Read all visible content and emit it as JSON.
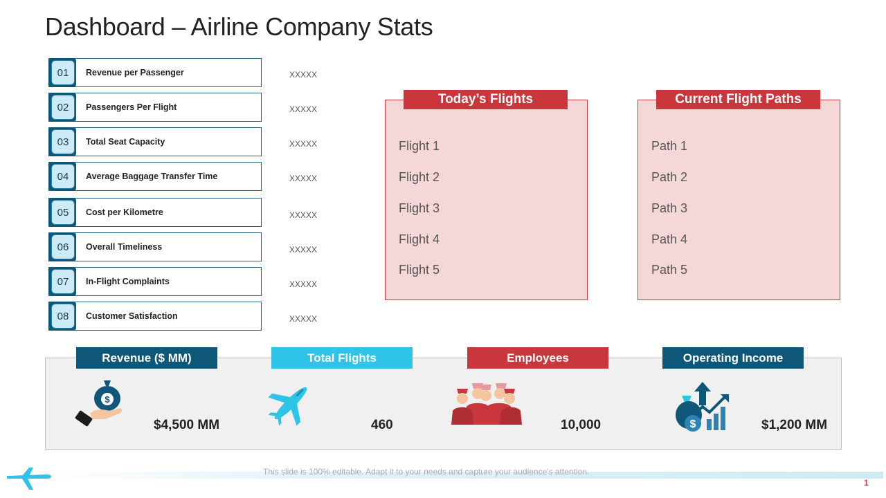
{
  "page": {
    "title": "Dashboard – Airline Company Stats"
  },
  "kpis": [
    {
      "num": "01",
      "label": "Revenue per Passenger",
      "value": "XXXXX"
    },
    {
      "num": "02",
      "label": "Passengers Per Flight",
      "value": "XXXXX"
    },
    {
      "num": "03",
      "label": "Total Seat Capacity",
      "value": "XXXXX"
    },
    {
      "num": "04",
      "label": "Average Baggage Transfer Time",
      "value": "XXXXX"
    },
    {
      "num": "05",
      "label": "Cost per Kilometre",
      "value": "XXXXX"
    },
    {
      "num": "06",
      "label": "Overall Timeliness",
      "value": "XXXXX"
    },
    {
      "num": "07",
      "label": "In-Flight Complaints",
      "value": "XXXXX"
    },
    {
      "num": "08",
      "label": "Customer Satisfaction",
      "value": "XXXXX"
    }
  ],
  "flights_panel": {
    "title": "Today’s Flights",
    "items": [
      "Flight 1",
      "Flight 2",
      "Flight 3",
      "Flight 4",
      "Flight 5"
    ]
  },
  "paths_panel": {
    "title": "Current Flight Paths",
    "items": [
      "Path 1",
      "Path 2",
      "Path 3",
      "Path 4",
      "Path 5"
    ]
  },
  "stats": [
    {
      "label": "Revenue ($ MM)",
      "value": "$4,500 MM",
      "color": "#0f5778",
      "icon": "money-bag-hand-icon"
    },
    {
      "label": "Total Flights",
      "value": "460",
      "color": "#2ec4e8",
      "icon": "airplane-icon"
    },
    {
      "label": "Employees",
      "value": "10,000",
      "color": "#c9373c",
      "icon": "crew-icon"
    },
    {
      "label": "Operating Income",
      "value": "$1,200 MM",
      "color": "#0f5778",
      "icon": "income-growth-icon"
    }
  ],
  "footer": {
    "note": "This slide is 100% editable. Adapt it to your needs and capture your audience's attention.",
    "page_number": "1"
  },
  "colors": {
    "accent_red": "#c9373c",
    "accent_navy": "#0f5778",
    "accent_cyan": "#2ec4e8",
    "panel_pink": "#f5d7d8"
  }
}
